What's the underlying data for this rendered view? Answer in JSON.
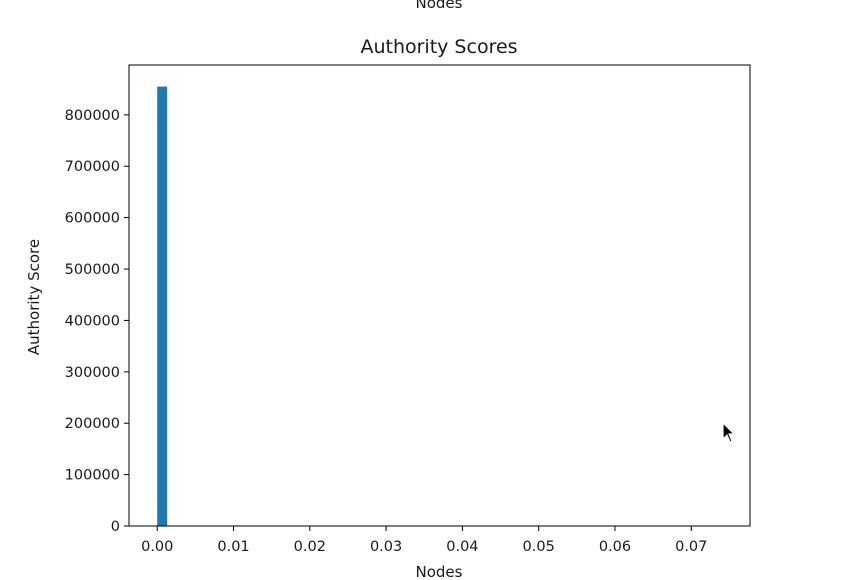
{
  "upper_figure_xlabel": "Nodes",
  "chart_data": {
    "type": "bar",
    "title": "Authority Scores",
    "xlabel": "Nodes",
    "ylabel": "Authority Score",
    "xlim": [
      -0.0037,
      0.0777
    ],
    "ylim": [
      0,
      897000
    ],
    "xticks": [
      0.0,
      0.01,
      0.02,
      0.03,
      0.04,
      0.05,
      0.06,
      0.07
    ],
    "xtick_labels": [
      "0.00",
      "0.01",
      "0.02",
      "0.03",
      "0.04",
      "0.05",
      "0.06",
      "0.07"
    ],
    "yticks": [
      0,
      100000,
      200000,
      300000,
      400000,
      500000,
      600000,
      700000,
      800000
    ],
    "ytick_labels": [
      "0",
      "100000",
      "200000",
      "300000",
      "400000",
      "500000",
      "600000",
      "700000",
      "800000"
    ],
    "bars": [
      {
        "x_start": 0.0,
        "x_end": 0.0013,
        "value": 855000
      }
    ],
    "bar_color": "#1f77b4",
    "grid": false,
    "legend": "none"
  }
}
